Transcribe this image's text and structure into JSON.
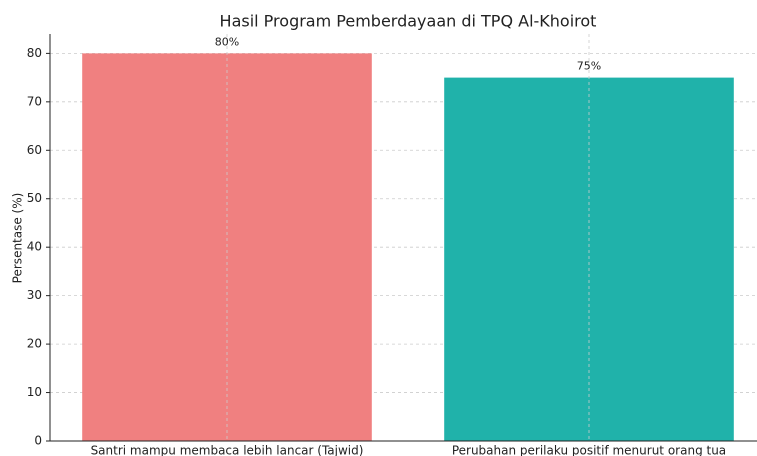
{
  "chart_data": {
    "type": "bar",
    "title": "Hasil Program Pemberdayaan di TPQ Al-Khoirot",
    "ylabel": "Persentase (%)",
    "categories": [
      "Santri mampu membaca lebih lancar (Tajwid)",
      "Perubahan perilaku positif menurut orang tua"
    ],
    "values": [
      80,
      75
    ],
    "value_labels": [
      "80%",
      "75%"
    ],
    "colors": [
      "#f08080",
      "#20b2aa"
    ],
    "ylim": [
      0,
      84
    ],
    "yticks": [
      0,
      10,
      20,
      30,
      40,
      50,
      60,
      70,
      80
    ],
    "grid": true
  }
}
